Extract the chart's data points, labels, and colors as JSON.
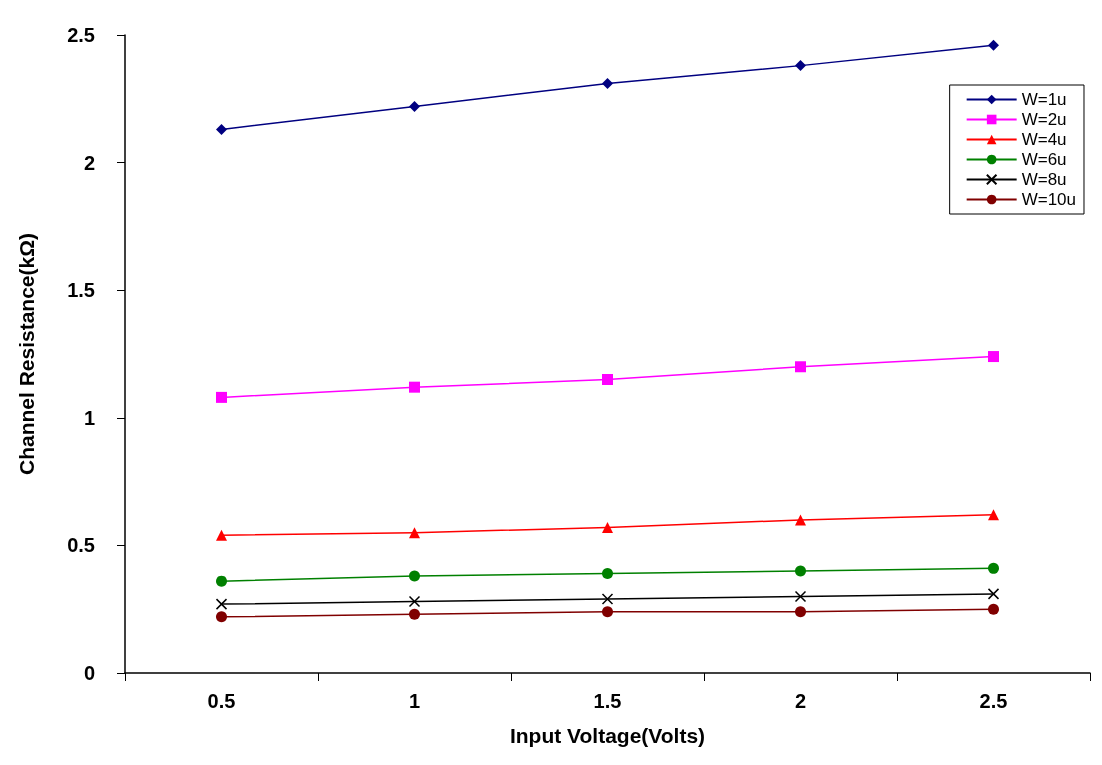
{
  "chart_data": {
    "type": "line",
    "xlabel": "Input Voltage(Volts)",
    "ylabel": "Channel Resistance(kΩ)",
    "categories": [
      "0.5",
      "1",
      "1.5",
      "2",
      "2.5"
    ],
    "series": [
      {
        "name": "W=1u",
        "color": "#000080",
        "marker": "diamond",
        "values": [
          2.13,
          2.22,
          2.31,
          2.38,
          2.46
        ]
      },
      {
        "name": "W=2u",
        "color": "#ff00ff",
        "marker": "square",
        "values": [
          1.08,
          1.12,
          1.15,
          1.2,
          1.24
        ]
      },
      {
        "name": "W=4u",
        "color": "#ff0000",
        "marker": "triangle",
        "values": [
          0.54,
          0.55,
          0.57,
          0.6,
          0.62
        ]
      },
      {
        "name": "W=6u",
        "color": "#008000",
        "marker": "circle",
        "values": [
          0.36,
          0.38,
          0.39,
          0.4,
          0.41
        ]
      },
      {
        "name": "W=8u",
        "color": "#000000",
        "marker": "cross",
        "values": [
          0.27,
          0.28,
          0.29,
          0.3,
          0.31
        ]
      },
      {
        "name": "W=10u",
        "color": "#800000",
        "marker": "circle",
        "values": [
          0.22,
          0.23,
          0.24,
          0.24,
          0.25
        ]
      }
    ],
    "ylim": [
      0,
      2.5
    ],
    "yticks": [
      0,
      0.5,
      1,
      1.5,
      2,
      2.5
    ],
    "grid": false,
    "legend": "top right",
    "line_style": "solid"
  }
}
